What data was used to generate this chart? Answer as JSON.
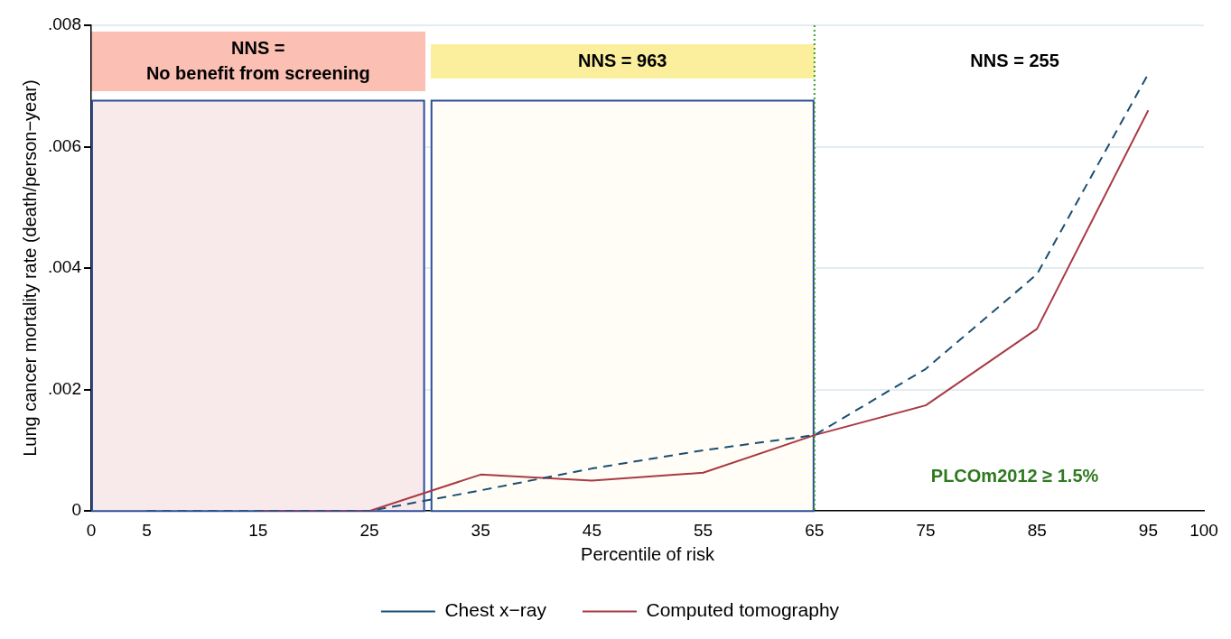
{
  "chart_data": {
    "type": "line",
    "xlabel": "Percentile of risk",
    "ylabel": "Lung cancer mortality rate (death/person−year)",
    "xlim": [
      0,
      100
    ],
    "xticks": [
      0,
      5,
      15,
      25,
      35,
      45,
      55,
      65,
      75,
      85,
      95,
      100
    ],
    "ylim": [
      0,
      0.008
    ],
    "yticks": [
      0,
      {
        "value": 0.002,
        "label": ".002"
      },
      {
        "value": 0.004,
        "label": ".004"
      },
      {
        "value": 0.006,
        "label": ".006"
      },
      {
        "value": 0.008,
        "label": ".008"
      }
    ],
    "grid": "y",
    "legend": "bottom",
    "series": [
      {
        "name": "Chest x−ray",
        "color": "#1a4f72",
        "line_style": "dashed",
        "x": [
          5,
          15,
          25,
          35,
          45,
          55,
          65,
          75,
          85,
          95
        ],
        "values": [
          0,
          0,
          0,
          0.00034,
          0.0007,
          0.001,
          0.00125,
          0.00234,
          0.0039,
          0.0072
        ]
      },
      {
        "name": "Computed tomography",
        "color": "#a83a44",
        "line_style": "solid",
        "x": [
          15,
          25,
          35,
          45,
          55,
          65,
          75,
          85,
          95
        ],
        "values": [
          0,
          0,
          0.0006,
          0.0005,
          0.00063,
          0.00125,
          0.00174,
          0.003,
          0.0066
        ]
      }
    ],
    "bands": [
      {
        "axis": "x",
        "from": 0,
        "to": 30,
        "label": "NNS =\nNo benefit from screening",
        "color": "#f8e9ea"
      },
      {
        "axis": "x",
        "from": 30.5,
        "to": 65,
        "label": "NNS = 963",
        "color": "#fffdf5"
      }
    ],
    "ref_lines": [
      {
        "axis": "x",
        "value": 65,
        "color": "#3a9a2a",
        "line_style": "dotted"
      }
    ],
    "annotations": [
      "NNS = 255",
      "PLCOm2012 ≥ 1.5%"
    ]
  }
}
